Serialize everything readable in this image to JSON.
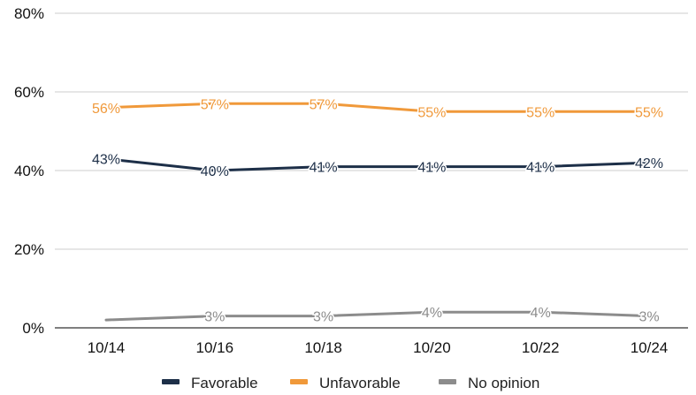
{
  "chart_data": {
    "type": "line",
    "title": "",
    "xlabel": "",
    "ylabel": "",
    "categories": [
      "10/14",
      "10/16",
      "10/18",
      "10/20",
      "10/22",
      "10/24"
    ],
    "ylim": [
      0,
      80
    ],
    "yticks": [
      0,
      20,
      40,
      60,
      80
    ],
    "ytick_labels": [
      "0%",
      "20%",
      "40%",
      "60%",
      "80%"
    ],
    "grid": true,
    "legend_position": "bottom",
    "series": [
      {
        "name": "Favorable",
        "color": "#1d2f48",
        "values": [
          43,
          40,
          41,
          41,
          41,
          42
        ],
        "labels": [
          "43%",
          "40%",
          "41%",
          "41%",
          "41%",
          "42%"
        ]
      },
      {
        "name": "Unfavorable",
        "color": "#f0993a",
        "values": [
          56,
          57,
          57,
          55,
          55,
          55
        ],
        "labels": [
          "56%",
          "57%",
          "57%",
          "55%",
          "55%",
          "55%"
        ]
      },
      {
        "name": "No opinion",
        "color": "#8c8c8c",
        "values": [
          2,
          3,
          3,
          4,
          4,
          3
        ],
        "labels": [
          "",
          "3%",
          "3%",
          "4%",
          "4%",
          "3%"
        ]
      }
    ]
  }
}
